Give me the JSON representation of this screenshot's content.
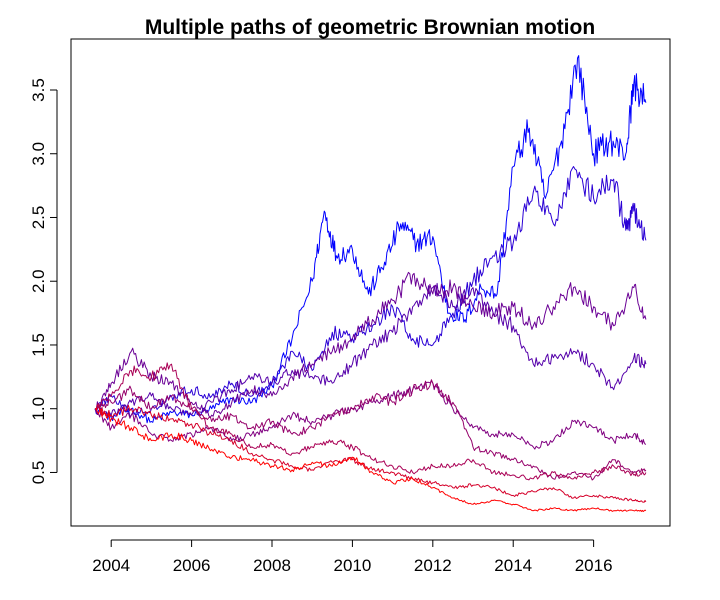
{
  "chart_data": {
    "type": "line",
    "title": "Multiple paths of geometric Brownian motion",
    "xlabel": "",
    "ylabel": "",
    "xlim": [
      2003.0,
      2017.9
    ],
    "ylim": [
      0.08,
      3.9
    ],
    "x_ticks": [
      2004,
      2006,
      2008,
      2010,
      2012,
      2014,
      2016
    ],
    "x_tick_labels": [
      "2004",
      "2006",
      "2008",
      "2010",
      "2012",
      "2014",
      "2016"
    ],
    "y_ticks": [
      0.5,
      1.0,
      1.5,
      2.0,
      2.5,
      3.0,
      3.5
    ],
    "y_tick_labels": [
      "0.5",
      "1.0",
      "1.5",
      "2.0",
      "2.5",
      "3.0",
      "3.5"
    ],
    "grid": false,
    "legend": "none",
    "series": [
      {
        "color": "#0000FF",
        "points": [
          [
            2003.6,
            1.0
          ],
          [
            2004.0,
            0.93
          ],
          [
            2004.5,
            1.0
          ],
          [
            2005.0,
            0.9
          ],
          [
            2005.5,
            0.97
          ],
          [
            2006.0,
            0.95
          ],
          [
            2006.5,
            1.0
          ],
          [
            2007.0,
            1.08
          ],
          [
            2007.5,
            1.05
          ],
          [
            2008.0,
            1.18
          ],
          [
            2008.5,
            1.55
          ],
          [
            2009.0,
            2.0
          ],
          [
            2009.3,
            2.55
          ],
          [
            2009.6,
            2.2
          ],
          [
            2010.0,
            2.25
          ],
          [
            2010.4,
            1.9
          ],
          [
            2010.8,
            2.15
          ],
          [
            2011.2,
            2.45
          ],
          [
            2011.6,
            2.3
          ],
          [
            2012.0,
            2.35
          ],
          [
            2012.4,
            1.75
          ],
          [
            2012.8,
            1.7
          ],
          [
            2013.2,
            1.95
          ],
          [
            2013.6,
            1.9
          ],
          [
            2014.0,
            2.9
          ],
          [
            2014.4,
            3.2
          ],
          [
            2014.8,
            2.65
          ],
          [
            2015.2,
            3.1
          ],
          [
            2015.6,
            3.75
          ],
          [
            2016.0,
            3.0
          ],
          [
            2016.4,
            3.1
          ],
          [
            2016.8,
            3.0
          ],
          [
            2017.0,
            3.55
          ],
          [
            2017.3,
            3.4
          ]
        ]
      },
      {
        "color": "#2A00D5",
        "points": [
          [
            2003.6,
            1.0
          ],
          [
            2004.0,
            1.1
          ],
          [
            2004.5,
            0.95
          ],
          [
            2005.0,
            1.0
          ],
          [
            2005.5,
            1.1
          ],
          [
            2006.0,
            1.15
          ],
          [
            2006.5,
            1.1
          ],
          [
            2007.0,
            1.2
          ],
          [
            2007.5,
            1.1
          ],
          [
            2008.0,
            1.2
          ],
          [
            2008.5,
            1.45
          ],
          [
            2009.0,
            1.3
          ],
          [
            2009.5,
            1.6
          ],
          [
            2010.0,
            1.55
          ],
          [
            2010.5,
            1.65
          ],
          [
            2011.0,
            1.8
          ],
          [
            2011.5,
            1.55
          ],
          [
            2012.0,
            1.5
          ],
          [
            2012.5,
            1.75
          ],
          [
            2013.0,
            2.0
          ],
          [
            2013.5,
            2.2
          ],
          [
            2014.0,
            2.3
          ],
          [
            2014.5,
            2.7
          ],
          [
            2015.0,
            2.45
          ],
          [
            2015.5,
            2.9
          ],
          [
            2016.0,
            2.65
          ],
          [
            2016.5,
            2.8
          ],
          [
            2016.8,
            2.4
          ],
          [
            2017.0,
            2.55
          ],
          [
            2017.3,
            2.32
          ]
        ]
      },
      {
        "color": "#5500AA",
        "points": [
          [
            2003.6,
            1.0
          ],
          [
            2004.0,
            0.95
          ],
          [
            2004.5,
            1.05
          ],
          [
            2005.0,
            1.1
          ],
          [
            2005.5,
            1.0
          ],
          [
            2006.0,
            0.95
          ],
          [
            2006.5,
            1.05
          ],
          [
            2007.0,
            1.15
          ],
          [
            2007.5,
            1.25
          ],
          [
            2008.0,
            1.2
          ],
          [
            2008.5,
            1.3
          ],
          [
            2009.0,
            1.25
          ],
          [
            2009.5,
            1.2
          ],
          [
            2010.0,
            1.35
          ],
          [
            2010.5,
            1.5
          ],
          [
            2011.0,
            1.6
          ],
          [
            2011.5,
            1.8
          ],
          [
            2012.0,
            1.95
          ],
          [
            2012.5,
            1.8
          ],
          [
            2013.0,
            1.95
          ],
          [
            2013.5,
            1.75
          ],
          [
            2014.0,
            1.65
          ],
          [
            2014.5,
            1.35
          ],
          [
            2015.0,
            1.4
          ],
          [
            2015.5,
            1.45
          ],
          [
            2016.0,
            1.35
          ],
          [
            2016.5,
            1.15
          ],
          [
            2017.0,
            1.4
          ],
          [
            2017.3,
            1.35
          ]
        ]
      },
      {
        "color": "#6A0095",
        "points": [
          [
            2003.6,
            1.0
          ],
          [
            2004.0,
            1.2
          ],
          [
            2004.5,
            1.45
          ],
          [
            2005.0,
            1.25
          ],
          [
            2005.5,
            1.2
          ],
          [
            2006.0,
            1.05
          ],
          [
            2006.5,
            0.95
          ],
          [
            2007.0,
            1.05
          ],
          [
            2007.5,
            1.15
          ],
          [
            2008.0,
            1.1
          ],
          [
            2008.5,
            1.25
          ],
          [
            2009.0,
            1.35
          ],
          [
            2009.5,
            1.45
          ],
          [
            2010.0,
            1.55
          ],
          [
            2010.5,
            1.7
          ],
          [
            2011.0,
            1.85
          ],
          [
            2011.5,
            2.05
          ],
          [
            2012.0,
            1.9
          ],
          [
            2012.5,
            1.95
          ],
          [
            2013.0,
            1.8
          ],
          [
            2013.5,
            1.75
          ],
          [
            2014.0,
            1.8
          ],
          [
            2014.5,
            1.65
          ],
          [
            2015.0,
            1.8
          ],
          [
            2015.5,
            1.95
          ],
          [
            2016.0,
            1.8
          ],
          [
            2016.5,
            1.65
          ],
          [
            2017.0,
            1.95
          ],
          [
            2017.3,
            1.7
          ]
        ]
      },
      {
        "color": "#800080",
        "points": [
          [
            2003.6,
            1.0
          ],
          [
            2004.0,
            0.85
          ],
          [
            2004.5,
            0.95
          ],
          [
            2005.0,
            0.8
          ],
          [
            2005.5,
            0.75
          ],
          [
            2006.0,
            0.8
          ],
          [
            2006.5,
            0.85
          ],
          [
            2007.0,
            0.75
          ],
          [
            2007.5,
            0.8
          ],
          [
            2008.0,
            0.85
          ],
          [
            2008.5,
            0.95
          ],
          [
            2009.0,
            0.9
          ],
          [
            2009.5,
            0.95
          ],
          [
            2010.0,
            1.0
          ],
          [
            2010.5,
            1.05
          ],
          [
            2011.0,
            1.1
          ],
          [
            2011.5,
            1.15
          ],
          [
            2012.0,
            1.2
          ],
          [
            2012.5,
            1.0
          ],
          [
            2013.0,
            0.85
          ],
          [
            2013.5,
            0.8
          ],
          [
            2014.0,
            0.8
          ],
          [
            2014.5,
            0.7
          ],
          [
            2015.0,
            0.75
          ],
          [
            2015.5,
            0.9
          ],
          [
            2016.0,
            0.85
          ],
          [
            2016.5,
            0.75
          ],
          [
            2017.0,
            0.8
          ],
          [
            2017.3,
            0.72
          ]
        ]
      },
      {
        "color": "#95006A",
        "points": [
          [
            2003.6,
            1.0
          ],
          [
            2004.0,
            1.05
          ],
          [
            2004.5,
            1.15
          ],
          [
            2005.0,
            1.0
          ],
          [
            2005.5,
            1.1
          ],
          [
            2006.0,
            1.0
          ],
          [
            2006.5,
            0.9
          ],
          [
            2007.0,
            0.95
          ],
          [
            2007.5,
            0.85
          ],
          [
            2008.0,
            0.9
          ],
          [
            2008.5,
            0.8
          ],
          [
            2009.0,
            0.85
          ],
          [
            2009.5,
            0.95
          ],
          [
            2010.0,
            1.0
          ],
          [
            2010.5,
            1.1
          ],
          [
            2011.0,
            1.05
          ],
          [
            2011.5,
            1.15
          ],
          [
            2012.0,
            1.2
          ],
          [
            2012.5,
            1.05
          ],
          [
            2013.0,
            0.7
          ],
          [
            2013.5,
            0.65
          ],
          [
            2014.0,
            0.6
          ],
          [
            2014.5,
            0.55
          ],
          [
            2015.0,
            0.45
          ],
          [
            2015.5,
            0.5
          ],
          [
            2016.0,
            0.45
          ],
          [
            2016.5,
            0.6
          ],
          [
            2017.0,
            0.5
          ],
          [
            2017.3,
            0.52
          ]
        ]
      },
      {
        "color": "#AA0055",
        "points": [
          [
            2003.6,
            1.0
          ],
          [
            2004.0,
            1.1
          ],
          [
            2004.5,
            1.3
          ],
          [
            2005.0,
            1.25
          ],
          [
            2005.5,
            1.35
          ],
          [
            2006.0,
            1.0
          ],
          [
            2006.5,
            0.85
          ],
          [
            2007.0,
            0.8
          ],
          [
            2007.5,
            0.7
          ],
          [
            2008.0,
            0.72
          ],
          [
            2008.5,
            0.65
          ],
          [
            2009.0,
            0.7
          ],
          [
            2009.5,
            0.75
          ],
          [
            2010.0,
            0.7
          ],
          [
            2010.5,
            0.6
          ],
          [
            2011.0,
            0.55
          ],
          [
            2011.5,
            0.5
          ],
          [
            2012.0,
            0.55
          ],
          [
            2012.5,
            0.55
          ],
          [
            2013.0,
            0.6
          ],
          [
            2013.5,
            0.5
          ],
          [
            2014.0,
            0.48
          ],
          [
            2014.5,
            0.45
          ],
          [
            2015.0,
            0.5
          ],
          [
            2015.5,
            0.45
          ],
          [
            2016.0,
            0.5
          ],
          [
            2016.5,
            0.55
          ],
          [
            2017.0,
            0.48
          ],
          [
            2017.3,
            0.5
          ]
        ]
      },
      {
        "color": "#D5002A",
        "points": [
          [
            2003.6,
            1.0
          ],
          [
            2004.0,
            0.95
          ],
          [
            2004.5,
            1.0
          ],
          [
            2005.0,
            0.95
          ],
          [
            2005.5,
            0.92
          ],
          [
            2006.0,
            0.88
          ],
          [
            2006.5,
            0.8
          ],
          [
            2007.0,
            0.75
          ],
          [
            2007.5,
            0.65
          ],
          [
            2008.0,
            0.6
          ],
          [
            2008.5,
            0.55
          ],
          [
            2009.0,
            0.52
          ],
          [
            2009.5,
            0.58
          ],
          [
            2010.0,
            0.6
          ],
          [
            2010.5,
            0.52
          ],
          [
            2011.0,
            0.5
          ],
          [
            2011.5,
            0.45
          ],
          [
            2012.0,
            0.42
          ],
          [
            2012.5,
            0.38
          ],
          [
            2013.0,
            0.4
          ],
          [
            2013.5,
            0.38
          ],
          [
            2014.0,
            0.32
          ],
          [
            2014.5,
            0.35
          ],
          [
            2015.0,
            0.38
          ],
          [
            2015.5,
            0.3
          ],
          [
            2016.0,
            0.32
          ],
          [
            2016.5,
            0.3
          ],
          [
            2017.0,
            0.28
          ],
          [
            2017.3,
            0.27
          ]
        ]
      },
      {
        "color": "#FF0000",
        "points": [
          [
            2003.6,
            1.0
          ],
          [
            2004.0,
            0.92
          ],
          [
            2004.5,
            0.85
          ],
          [
            2005.0,
            0.75
          ],
          [
            2005.5,
            0.8
          ],
          [
            2006.0,
            0.75
          ],
          [
            2006.5,
            0.68
          ],
          [
            2007.0,
            0.62
          ],
          [
            2007.5,
            0.6
          ],
          [
            2008.0,
            0.55
          ],
          [
            2008.5,
            0.52
          ],
          [
            2009.0,
            0.58
          ],
          [
            2009.5,
            0.55
          ],
          [
            2010.0,
            0.62
          ],
          [
            2010.5,
            0.5
          ],
          [
            2011.0,
            0.42
          ],
          [
            2011.5,
            0.45
          ],
          [
            2012.0,
            0.38
          ],
          [
            2012.5,
            0.3
          ],
          [
            2013.0,
            0.25
          ],
          [
            2013.5,
            0.28
          ],
          [
            2014.0,
            0.25
          ],
          [
            2014.5,
            0.2
          ],
          [
            2015.0,
            0.22
          ],
          [
            2015.5,
            0.2
          ],
          [
            2016.0,
            0.22
          ],
          [
            2016.5,
            0.2
          ],
          [
            2017.0,
            0.2
          ],
          [
            2017.3,
            0.2
          ]
        ]
      }
    ]
  }
}
